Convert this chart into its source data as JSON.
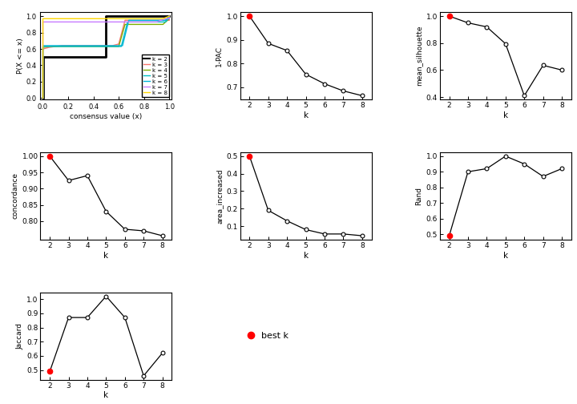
{
  "k_values": [
    2,
    3,
    4,
    5,
    6,
    7,
    8
  ],
  "one_minus_pac": [
    1.0,
    0.885,
    0.855,
    0.755,
    0.715,
    0.685,
    0.665
  ],
  "mean_silhouette": [
    1.0,
    0.95,
    0.92,
    0.795,
    0.41,
    0.635,
    0.6
  ],
  "concordance": [
    1.0,
    0.925,
    0.94,
    0.83,
    0.775,
    0.77,
    0.755
  ],
  "area_increased": [
    0.5,
    0.19,
    0.13,
    0.08,
    0.055,
    0.055,
    0.045
  ],
  "rand": [
    0.49,
    0.9,
    0.92,
    1.0,
    0.95,
    0.87,
    0.92
  ],
  "jaccard": [
    0.49,
    0.87,
    0.87,
    1.02,
    0.87,
    0.46,
    0.62
  ],
  "best_k": 2,
  "line_colors": {
    "k2": "#000000",
    "k3": "#f8766d",
    "k4": "#7cae00",
    "k5": "#00bfc4",
    "k6": "#00b4d8",
    "k7": "#c77cff",
    "k8": "#ffd700"
  },
  "red_dot_color": "#ff0000",
  "bg_color": "#ffffff",
  "fig_width": 7.2,
  "fig_height": 5.04,
  "dpi": 100
}
